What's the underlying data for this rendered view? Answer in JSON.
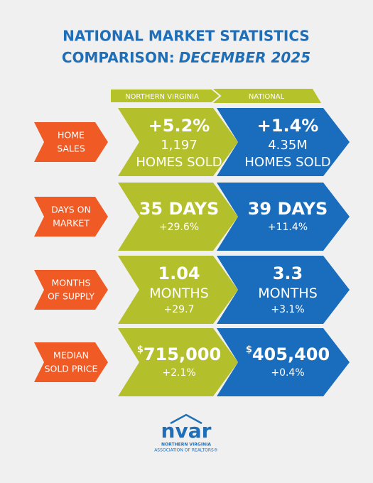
{
  "header": {
    "title_line1": "NATIONAL MARKET STATISTICS",
    "title_line2_a": "COMPARISON:",
    "title_line2_b": "DECEMBER 2025"
  },
  "columns": [
    "NORTHERN VIRGINIA",
    "NATIONAL"
  ],
  "rows": [
    {
      "label": [
        "HOME",
        "SALES"
      ],
      "nova": {
        "main": "+5.2%",
        "lines": [
          "1,197",
          "HOMES SOLD"
        ]
      },
      "national": {
        "main": "+1.4%",
        "lines": [
          "4.35M",
          "HOMES SOLD"
        ]
      }
    },
    {
      "label": [
        "DAYS ON",
        "MARKET"
      ],
      "nova": {
        "main": "35 DAYS",
        "lines": [
          "+29.6%"
        ]
      },
      "national": {
        "main": "39 DAYS",
        "lines": [
          "+11.4%"
        ]
      }
    },
    {
      "label": [
        "MONTHS",
        "OF SUPPLY"
      ],
      "nova": {
        "main": "1.04",
        "lines": [
          "MONTHS",
          "+29.7"
        ]
      },
      "national": {
        "main": "3.3",
        "lines": [
          "MONTHS",
          "+3.1%"
        ]
      }
    },
    {
      "label": [
        "MEDIAN",
        "SOLD PRICE"
      ],
      "nova": {
        "currency": "$",
        "main": "715,000",
        "lines": [
          "+2.1%"
        ]
      },
      "national": {
        "currency": "$",
        "main": "405,400",
        "lines": [
          "+0.4%"
        ]
      }
    }
  ],
  "logo": {
    "name": "nvar",
    "line1": "NORTHERN VIRGINIA",
    "line2": "ASSOCIATION OF REALTORS®"
  }
}
